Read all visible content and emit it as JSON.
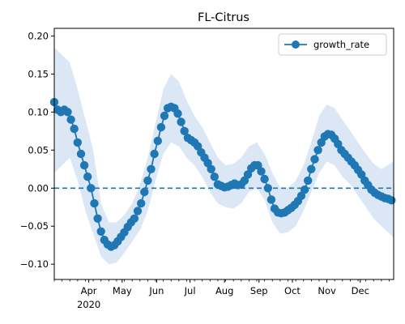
{
  "chart_data": {
    "type": "line",
    "title": "FL-Citrus",
    "xlabel": "",
    "ylabel": "",
    "x_range": [
      "2020-03-01",
      "2020-12-31"
    ],
    "ylim": [
      -0.12,
      0.21
    ],
    "yticks": [
      -0.1,
      -0.05,
      0.0,
      0.05,
      0.1,
      0.15,
      0.2
    ],
    "ytick_labels": [
      "−0.10",
      "−0.05",
      "0.00",
      "0.05",
      "0.10",
      "0.15",
      "0.20"
    ],
    "xticks": [
      {
        "date": "2020-04-01",
        "label": "Apr",
        "sublabel": "2020"
      },
      {
        "date": "2020-05-01",
        "label": "May"
      },
      {
        "date": "2020-06-01",
        "label": "Jun"
      },
      {
        "date": "2020-07-01",
        "label": "Jul"
      },
      {
        "date": "2020-08-01",
        "label": "Aug"
      },
      {
        "date": "2020-09-01",
        "label": "Sep"
      },
      {
        "date": "2020-10-01",
        "label": "Oct"
      },
      {
        "date": "2020-11-01",
        "label": "Nov"
      },
      {
        "date": "2020-12-01",
        "label": "Dec"
      }
    ],
    "grid": false,
    "legend": {
      "position": "top-right",
      "entries": [
        "growth_rate"
      ]
    },
    "reference_line": {
      "y": 0.0,
      "style": "dashed",
      "color": "#1f77b4"
    },
    "colors": {
      "series": "#1f77b4",
      "band": "#dbe7f4"
    },
    "series": [
      {
        "name": "growth_rate",
        "marker": "circle",
        "points": [
          [
            "2020-03-01",
            0.113
          ],
          [
            "2020-03-04",
            0.103
          ],
          [
            "2020-03-07",
            0.1
          ],
          [
            "2020-03-10",
            0.103
          ],
          [
            "2020-03-13",
            0.1
          ],
          [
            "2020-03-16",
            0.09
          ],
          [
            "2020-03-19",
            0.078
          ],
          [
            "2020-03-22",
            0.06
          ],
          [
            "2020-03-25",
            0.045
          ],
          [
            "2020-03-28",
            0.03
          ],
          [
            "2020-03-31",
            0.015
          ],
          [
            "2020-04-03",
            0.0
          ],
          [
            "2020-04-06",
            -0.02
          ],
          [
            "2020-04-09",
            -0.04
          ],
          [
            "2020-04-12",
            -0.057
          ],
          [
            "2020-04-15",
            -0.068
          ],
          [
            "2020-04-18",
            -0.074
          ],
          [
            "2020-04-21",
            -0.077
          ],
          [
            "2020-04-24",
            -0.075
          ],
          [
            "2020-04-27",
            -0.07
          ],
          [
            "2020-04-30",
            -0.064
          ],
          [
            "2020-05-03",
            -0.058
          ],
          [
            "2020-05-06",
            -0.051
          ],
          [
            "2020-05-09",
            -0.045
          ],
          [
            "2020-05-12",
            -0.04
          ],
          [
            "2020-05-15",
            -0.03
          ],
          [
            "2020-05-18",
            -0.02
          ],
          [
            "2020-05-21",
            -0.005
          ],
          [
            "2020-05-24",
            0.01
          ],
          [
            "2020-05-27",
            0.025
          ],
          [
            "2020-05-30",
            0.045
          ],
          [
            "2020-06-02",
            0.062
          ],
          [
            "2020-06-05",
            0.08
          ],
          [
            "2020-06-08",
            0.095
          ],
          [
            "2020-06-11",
            0.105
          ],
          [
            "2020-06-14",
            0.107
          ],
          [
            "2020-06-17",
            0.105
          ],
          [
            "2020-06-20",
            0.098
          ],
          [
            "2020-06-23",
            0.087
          ],
          [
            "2020-06-26",
            0.075
          ],
          [
            "2020-06-29",
            0.066
          ],
          [
            "2020-07-02",
            0.063
          ],
          [
            "2020-07-05",
            0.06
          ],
          [
            "2020-07-08",
            0.055
          ],
          [
            "2020-07-11",
            0.047
          ],
          [
            "2020-07-14",
            0.04
          ],
          [
            "2020-07-17",
            0.033
          ],
          [
            "2020-07-20",
            0.025
          ],
          [
            "2020-07-23",
            0.015
          ],
          [
            "2020-07-26",
            0.005
          ],
          [
            "2020-07-29",
            0.003
          ],
          [
            "2020-08-01",
            0.001
          ],
          [
            "2020-08-04",
            0.002
          ],
          [
            "2020-08-07",
            0.004
          ],
          [
            "2020-08-10",
            0.006
          ],
          [
            "2020-08-13",
            0.004
          ],
          [
            "2020-08-16",
            0.005
          ],
          [
            "2020-08-19",
            0.01
          ],
          [
            "2020-08-22",
            0.018
          ],
          [
            "2020-08-25",
            0.026
          ],
          [
            "2020-08-28",
            0.03
          ],
          [
            "2020-08-31",
            0.03
          ],
          [
            "2020-09-03",
            0.022
          ],
          [
            "2020-09-06",
            0.012
          ],
          [
            "2020-09-09",
            0.0
          ],
          [
            "2020-09-12",
            -0.015
          ],
          [
            "2020-09-15",
            -0.027
          ],
          [
            "2020-09-18",
            -0.032
          ],
          [
            "2020-09-21",
            -0.033
          ],
          [
            "2020-09-24",
            -0.032
          ],
          [
            "2020-09-27",
            -0.029
          ],
          [
            "2020-09-30",
            -0.026
          ],
          [
            "2020-10-03",
            -0.022
          ],
          [
            "2020-10-06",
            -0.017
          ],
          [
            "2020-10-09",
            -0.01
          ],
          [
            "2020-10-12",
            -0.002
          ],
          [
            "2020-10-15",
            0.01
          ],
          [
            "2020-10-18",
            0.025
          ],
          [
            "2020-10-21",
            0.038
          ],
          [
            "2020-10-24",
            0.05
          ],
          [
            "2020-10-27",
            0.06
          ],
          [
            "2020-10-30",
            0.068
          ],
          [
            "2020-11-02",
            0.071
          ],
          [
            "2020-11-05",
            0.07
          ],
          [
            "2020-11-08",
            0.065
          ],
          [
            "2020-11-11",
            0.058
          ],
          [
            "2020-11-14",
            0.05
          ],
          [
            "2020-11-17",
            0.045
          ],
          [
            "2020-11-20",
            0.04
          ],
          [
            "2020-11-23",
            0.035
          ],
          [
            "2020-11-26",
            0.03
          ],
          [
            "2020-11-29",
            0.024
          ],
          [
            "2020-12-02",
            0.018
          ],
          [
            "2020-12-05",
            0.01
          ],
          [
            "2020-12-08",
            0.004
          ],
          [
            "2020-12-11",
            -0.002
          ],
          [
            "2020-12-14",
            -0.006
          ],
          [
            "2020-12-17",
            -0.009
          ],
          [
            "2020-12-20",
            -0.011
          ],
          [
            "2020-12-23",
            -0.013
          ],
          [
            "2020-12-26",
            -0.014
          ],
          [
            "2020-12-29",
            -0.016
          ]
        ]
      }
    ],
    "confidence_band": [
      [
        "2020-03-01",
        0.02,
        0.185
      ],
      [
        "2020-03-08",
        0.03,
        0.175
      ],
      [
        "2020-03-15",
        0.04,
        0.165
      ],
      [
        "2020-03-22",
        0.01,
        0.13
      ],
      [
        "2020-03-29",
        -0.03,
        0.09
      ],
      [
        "2020-04-05",
        -0.06,
        0.05
      ],
      [
        "2020-04-12",
        -0.09,
        -0.02
      ],
      [
        "2020-04-19",
        -0.1,
        -0.045
      ],
      [
        "2020-04-26",
        -0.098,
        -0.045
      ],
      [
        "2020-05-03",
        -0.085,
        -0.035
      ],
      [
        "2020-05-10",
        -0.07,
        -0.02
      ],
      [
        "2020-05-17",
        -0.055,
        0.005
      ],
      [
        "2020-05-24",
        -0.03,
        0.04
      ],
      [
        "2020-05-31",
        0.01,
        0.085
      ],
      [
        "2020-06-07",
        0.045,
        0.13
      ],
      [
        "2020-06-14",
        0.06,
        0.15
      ],
      [
        "2020-06-21",
        0.055,
        0.14
      ],
      [
        "2020-06-28",
        0.04,
        0.115
      ],
      [
        "2020-07-05",
        0.03,
        0.095
      ],
      [
        "2020-07-12",
        0.015,
        0.08
      ],
      [
        "2020-07-19",
        -0.005,
        0.06
      ],
      [
        "2020-07-26",
        -0.02,
        0.04
      ],
      [
        "2020-08-02",
        -0.025,
        0.03
      ],
      [
        "2020-08-09",
        -0.027,
        0.032
      ],
      [
        "2020-08-16",
        -0.02,
        0.04
      ],
      [
        "2020-08-23",
        -0.005,
        0.055
      ],
      [
        "2020-08-30",
        0.0,
        0.06
      ],
      [
        "2020-09-06",
        -0.015,
        0.045
      ],
      [
        "2020-09-13",
        -0.045,
        0.02
      ],
      [
        "2020-09-20",
        -0.06,
        0.0
      ],
      [
        "2020-09-27",
        -0.058,
        0.0
      ],
      [
        "2020-10-04",
        -0.05,
        0.01
      ],
      [
        "2020-10-11",
        -0.03,
        0.03
      ],
      [
        "2020-10-18",
        -0.005,
        0.06
      ],
      [
        "2020-10-25",
        0.02,
        0.095
      ],
      [
        "2020-11-01",
        0.035,
        0.11
      ],
      [
        "2020-11-08",
        0.03,
        0.105
      ],
      [
        "2020-11-15",
        0.015,
        0.09
      ],
      [
        "2020-11-22",
        0.005,
        0.075
      ],
      [
        "2020-11-29",
        -0.01,
        0.06
      ],
      [
        "2020-12-06",
        -0.025,
        0.045
      ],
      [
        "2020-12-13",
        -0.04,
        0.032
      ],
      [
        "2020-12-20",
        -0.05,
        0.025
      ],
      [
        "2020-12-31",
        -0.065,
        0.035
      ]
    ]
  }
}
